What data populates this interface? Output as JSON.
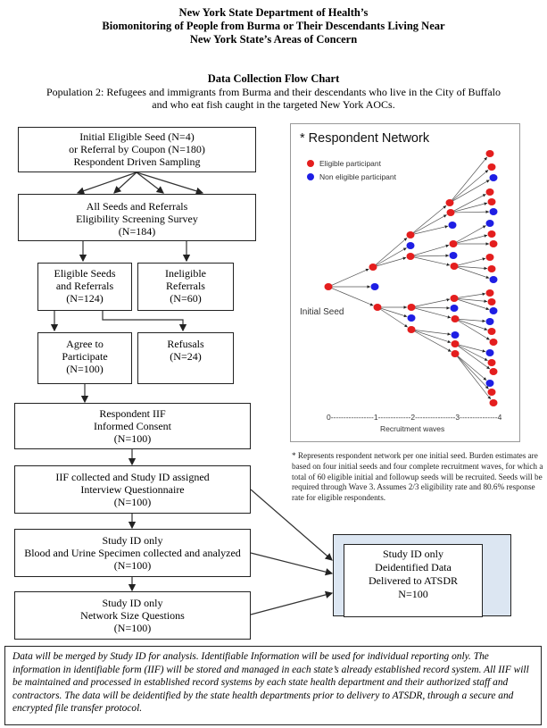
{
  "header": {
    "line1": "New York State Department of Health’s",
    "line2": "Biomonitoring of People from Burma or Their Descendants Living Near",
    "line3": "New York State’s Areas of Concern",
    "chart_title": "Data Collection Flow Chart",
    "population_line1": "Population 2: Refugees and immigrants from Burma and their descendants who live in the City of Buffalo",
    "population_line2": "and who eat fish caught in the targeted New York AOCs."
  },
  "flow": {
    "seed": [
      "Initial Eligible Seed (N=4)",
      "or Referral by Coupon (N=180)",
      "Respondent Driven Sampling"
    ],
    "screening": [
      "All Seeds and Referrals",
      "Eligibility Screening Survey",
      "(N=184)"
    ],
    "eligible": [
      "Eligible Seeds",
      "and Referrals",
      "(N=124)"
    ],
    "ineligible": [
      "Ineligible",
      "Referrals",
      "(N=60)"
    ],
    "agree": [
      "Agree to",
      "Participate",
      "(N=100)"
    ],
    "refusals": [
      "Refusals",
      "(N=24)"
    ],
    "iif": [
      "Respondent IIF",
      "Informed Consent",
      "(N=100)"
    ],
    "iif_collected": [
      "IIF collected and Study ID assigned",
      "Interview Questionnaire",
      "(N=100)"
    ],
    "specimen": [
      "Study ID only",
      "Blood and Urine Specimen collected and analyzed",
      "(N=100)"
    ],
    "network_size": [
      "Study ID only",
      "Network Size Questions",
      "(N=100)"
    ],
    "final": [
      "Study ID only",
      "Deidentified Data",
      "Delivered to ATSDR",
      "N=100"
    ]
  },
  "network": {
    "title": "* Respondent Network",
    "legend": [
      {
        "label": "Eligible participant",
        "color": "#e41e1e"
      },
      {
        "label": "Non eligible participant",
        "color": "#1e1ee4"
      }
    ],
    "seed_label": "Initial Seed",
    "axis_ticks": "0-----------------1-------------2----------------3---------------4",
    "axis_label": "Recruitment waves",
    "waves": {
      "w1": [
        "eligible",
        "non-eligible",
        "eligible"
      ],
      "w2": [
        "eligible",
        "non-eligible",
        "eligible",
        "eligible",
        "non-eligible",
        "eligible"
      ],
      "w3": [
        "eligible",
        "eligible",
        "non-eligible",
        "eligible",
        "non-eligible",
        "eligible",
        "eligible",
        "non-eligible",
        "eligible",
        "non-eligible",
        "eligible",
        "eligible"
      ],
      "w4": [
        "eligible",
        "eligible",
        "non-eligible",
        "eligible",
        "eligible",
        "non-eligible",
        "non-eligible",
        "eligible",
        "eligible",
        "eligible",
        "eligible",
        "non-eligible",
        "eligible",
        "eligible",
        "non-eligible",
        "non-eligible",
        "eligible",
        "eligible",
        "non-eligible",
        "eligible",
        "eligible",
        "non-eligible",
        "eligible",
        "eligible"
      ]
    }
  },
  "footnote": "* Represents respondent network per one initial seed. Burden estimates are based on four initial seeds and four complete recruitment waves, for which a total of 60 eligible initial and followup seeds will be recruited. Seeds will be required through Wave 3. Assumes 2/3 eligibility rate and 80.6% response rate for eligible respondents.",
  "note": "Data will be merged by Study ID for analysis. Identifiable Information will be used for individual reporting only. The information in identifiable form (IIF) will be stored and managed in each state’s already established record system. All IIF will be maintained and processed in established record systems by each state health department and their authorized staff and contractors. The data will be deidentified by the state health departments prior to delivery to ATSDR, through a secure and encrypted file transfer protocol."
}
